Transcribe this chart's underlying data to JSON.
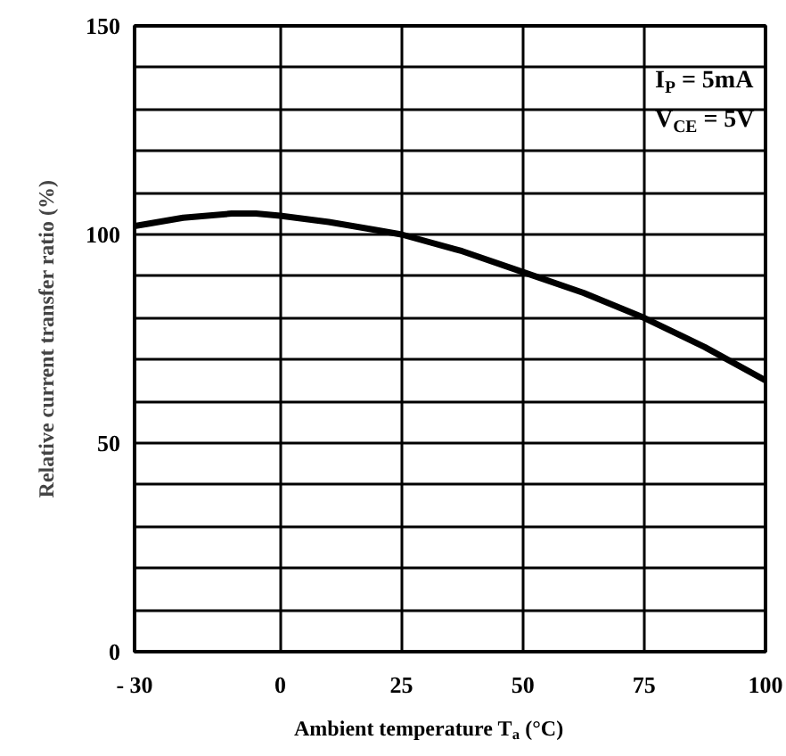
{
  "chart_data": {
    "type": "line",
    "xlabel": "Ambient temperature T$_{a}$ (°C)",
    "ylabel": "Relative current transfer ratio (%)",
    "x": [
      -30,
      -20,
      -10,
      -5,
      0,
      10,
      20,
      25,
      37.5,
      50,
      62.5,
      75,
      87.5,
      100
    ],
    "series": [
      {
        "color": "#000000",
        "values": [
          102,
          104,
          105,
          105,
          104.5,
          103,
          101,
          100,
          96,
          91,
          86,
          80,
          73,
          65
        ]
      }
    ],
    "xlim": [
      -30,
      100
    ],
    "xticks": [
      {
        "value": -30,
        "label": "- 30"
      },
      0,
      25,
      50,
      75,
      100
    ],
    "ylim": [
      0,
      150
    ],
    "yticks": [
      0,
      {
        "value": 10,
        "label": null
      },
      {
        "value": 20,
        "label": null
      },
      {
        "value": 30,
        "label": null
      },
      {
        "value": 40,
        "label": null
      },
      50,
      {
        "value": 60,
        "label": null
      },
      {
        "value": 70,
        "label": null
      },
      {
        "value": 80,
        "label": null
      },
      {
        "value": 90,
        "label": null
      },
      100,
      {
        "value": 110,
        "label": null
      },
      {
        "value": 120,
        "label": null
      },
      {
        "value": 130,
        "label": null
      },
      {
        "value": 140,
        "label": null
      },
      150
    ],
    "grid": true,
    "marker": "none",
    "line_style": "solid",
    "annotations": [
      "I$_{P}$ = 5mA",
      "V$_{CE}$ = 5V"
    ]
  }
}
